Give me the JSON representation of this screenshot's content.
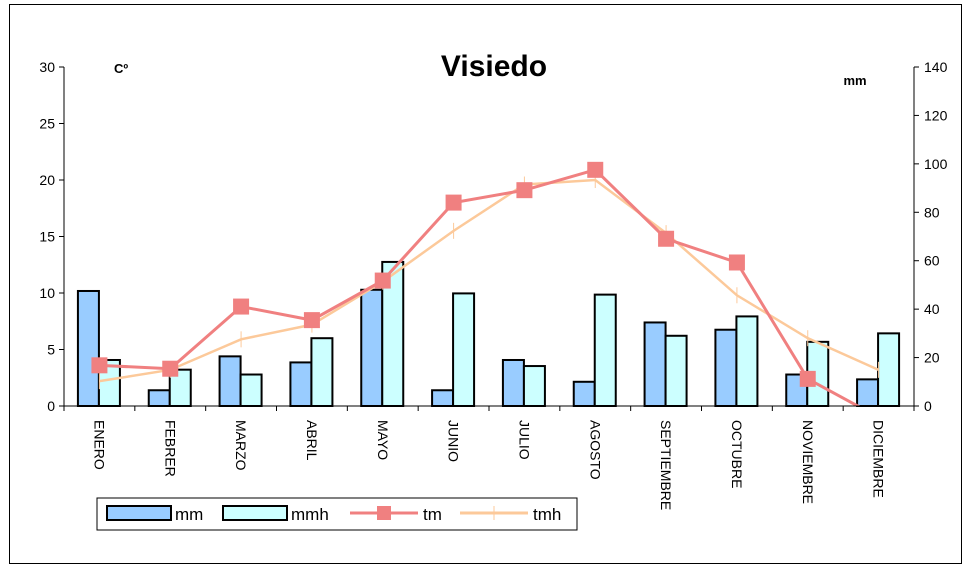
{
  "chart_data": {
    "type": "bar",
    "title": "Visiedo",
    "y_left_unit": "Cº",
    "y_right_unit": "mm",
    "y_left_lim": [
      0,
      30
    ],
    "y_left_ticks": [
      0,
      5,
      10,
      15,
      20,
      25,
      30
    ],
    "y_right_lim": [
      0,
      140
    ],
    "y_right_ticks": [
      0,
      20,
      40,
      60,
      80,
      100,
      120,
      140
    ],
    "categories": [
      "ENERO",
      "FEBRERO",
      "MARZO",
      "ABRIL",
      "MAYO",
      "JUNIO",
      "JULIO",
      "AGOSTO",
      "SEPTIEMBRE",
      "OCTUBRE",
      "NOVIEMBRE",
      "DICIEMBRE"
    ],
    "category_display": [
      "ENERO",
      "FEBRER",
      "MARZO",
      "ABRIL",
      "MAYO",
      "JUNIO",
      "JULIO",
      "AGOSTO",
      "SEPTIEMBRE",
      "OCTUBRE",
      "NOVIEMBRE",
      "DICIEMBRE"
    ],
    "grid": false,
    "legend_position": "bottom-left",
    "series": [
      {
        "name": "mm",
        "kind": "bar",
        "axis": "right",
        "color": "#99ccff",
        "values": [
          47.5,
          6.5,
          20.5,
          18,
          48,
          6.5,
          19,
          10,
          34.5,
          31.5,
          13,
          11
        ]
      },
      {
        "name": "mmh",
        "kind": "bar",
        "axis": "right",
        "color": "#ccffff",
        "values": [
          19,
          15,
          13,
          28,
          59.5,
          46.5,
          16.5,
          46,
          29,
          37,
          26.5,
          30
        ]
      },
      {
        "name": "tm",
        "kind": "line",
        "axis": "left",
        "color": "#f08080",
        "marker": "square",
        "values": [
          3.6,
          3.3,
          8.8,
          7.6,
          11.1,
          18.0,
          19.1,
          20.9,
          14.8,
          12.7,
          2.4,
          -1.0
        ]
      },
      {
        "name": "tmh",
        "kind": "line",
        "axis": "left",
        "color": "#fcc99a",
        "marker": "plus",
        "values": [
          2.2,
          3.2,
          5.9,
          7.2,
          11.0,
          15.5,
          19.6,
          20.0,
          15.3,
          9.8,
          6.0,
          3.2
        ]
      }
    ]
  }
}
